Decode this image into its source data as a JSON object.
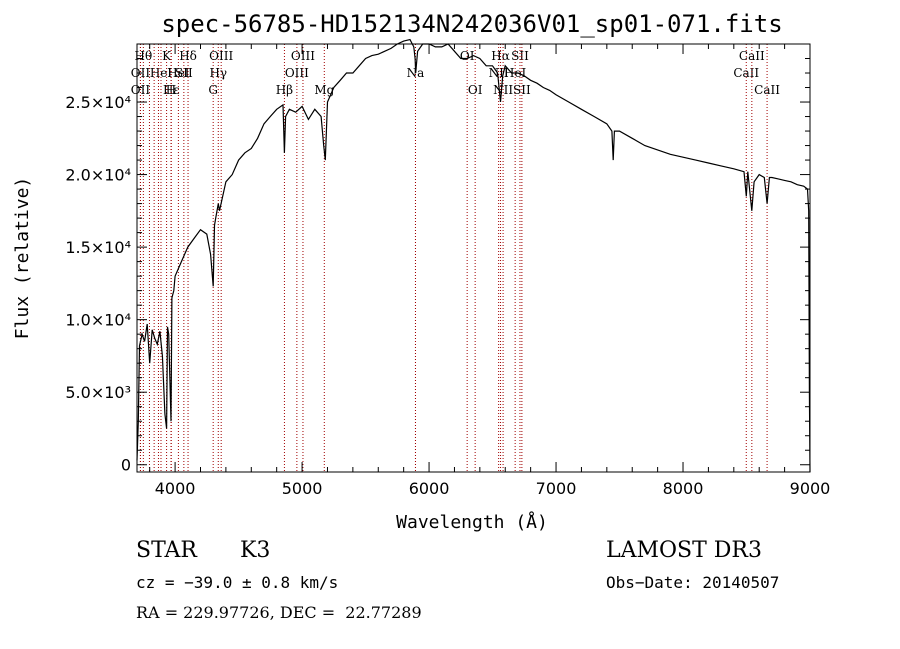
{
  "chart_data": {
    "type": "line",
    "title": "spec-56785-HD152134N242036V01_sp01-071.fits",
    "xlabel": "Wavelength (Å)",
    "ylabel": "Flux (relative)",
    "xlim": [
      3700,
      9000
    ],
    "ylim": [
      -500,
      29000
    ],
    "x_ticks": [
      4000,
      5000,
      6000,
      7000,
      8000,
      9000
    ],
    "y_ticks": [
      {
        "value": 0,
        "label": "0"
      },
      {
        "value": 5000,
        "label": "5.0×10³"
      },
      {
        "value": 10000,
        "label": "1.0×10⁴"
      },
      {
        "value": 15000,
        "label": "1.5×10⁴"
      },
      {
        "value": 20000,
        "label": "2.0×10⁴"
      },
      {
        "value": 25000,
        "label": "2.5×10⁴"
      }
    ],
    "series": [
      {
        "color": "#000000",
        "x": [
          3700,
          3710,
          3720,
          3740,
          3760,
          3780,
          3800,
          3820,
          3840,
          3860,
          3880,
          3900,
          3920,
          3933,
          3940,
          3950,
          3960,
          3968,
          3975,
          3990,
          4000,
          4050,
          4100,
          4150,
          4200,
          4250,
          4280,
          4300,
          4310,
          4320,
          4340,
          4350,
          4400,
          4450,
          4500,
          4550,
          4600,
          4650,
          4700,
          4750,
          4800,
          4850,
          4861,
          4870,
          4900,
          4950,
          5000,
          5050,
          5100,
          5150,
          5170,
          5183,
          5200,
          5250,
          5300,
          5350,
          5400,
          5450,
          5500,
          5550,
          5600,
          5650,
          5700,
          5750,
          5800,
          5850,
          5880,
          5890,
          5895,
          5910,
          5950,
          6000,
          6050,
          6100,
          6150,
          6200,
          6250,
          6300,
          6350,
          6400,
          6450,
          6500,
          6540,
          6563,
          6580,
          6600,
          6650,
          6700,
          6750,
          6800,
          6850,
          6900,
          6950,
          7000,
          7100,
          7200,
          7300,
          7400,
          7440,
          7450,
          7460,
          7500,
          7600,
          7700,
          7800,
          7900,
          8000,
          8100,
          8200,
          8300,
          8400,
          8480,
          8498,
          8510,
          8542,
          8560,
          8600,
          8640,
          8662,
          8680,
          8700,
          8750,
          8800,
          8850,
          8900,
          8950,
          8980,
          8990,
          8995,
          9000
        ],
        "y": [
          300,
          3000,
          8200,
          9000,
          8500,
          9700,
          7000,
          9300,
          8700,
          8300,
          9200,
          7500,
          3500,
          2500,
          9500,
          9000,
          5600,
          3000,
          11500,
          12000,
          13000,
          14000,
          15000,
          15600,
          16200,
          15900,
          14500,
          12300,
          16500,
          17000,
          18000,
          17500,
          19500,
          20000,
          21000,
          21500,
          21800,
          22500,
          23500,
          24000,
          24500,
          24800,
          21500,
          24000,
          24500,
          24300,
          24700,
          23800,
          24500,
          24000,
          22000,
          21000,
          25000,
          26000,
          26500,
          27000,
          27000,
          27500,
          28000,
          28200,
          28300,
          28500,
          28700,
          29000,
          29200,
          29300,
          28800,
          28000,
          27000,
          28500,
          29000,
          29000,
          28800,
          28800,
          29000,
          28500,
          28000,
          28000,
          28200,
          28000,
          27500,
          27500,
          27000,
          25000,
          26800,
          27500,
          27000,
          27000,
          26800,
          26500,
          26300,
          26000,
          25800,
          25500,
          25000,
          24500,
          24000,
          23500,
          23000,
          21000,
          23000,
          23000,
          22500,
          22000,
          21700,
          21400,
          21200,
          21000,
          20800,
          20600,
          20400,
          20200,
          18500,
          20200,
          17500,
          19500,
          20000,
          19800,
          18000,
          19800,
          19800,
          19700,
          19600,
          19500,
          19300,
          19200,
          19000,
          17500,
          5000,
          -500
        ]
      }
    ],
    "lines": [
      {
        "w": 3750,
        "label": "Hθ",
        "row": 0
      },
      {
        "w": 3727,
        "label": "OII",
        "row": 1
      },
      {
        "w": 3727,
        "label": "OII",
        "row": 2
      },
      {
        "w": 3798,
        "label": "",
        "row": -1
      },
      {
        "w": 3835,
        "label": "",
        "row": -1
      },
      {
        "w": 3889,
        "label": "HeI",
        "row": 1
      },
      {
        "w": 3869,
        "label": "",
        "row": -1
      },
      {
        "w": 3970,
        "label": "Hε",
        "row": 2
      },
      {
        "w": 3933,
        "label": "K",
        "row": 0
      },
      {
        "w": 3968,
        "label": "H",
        "row": 2
      },
      {
        "w": 4026,
        "label": "HeI",
        "row": 1
      },
      {
        "w": 4069,
        "label": "SII",
        "row": 1
      },
      {
        "w": 4102,
        "label": "Hδ",
        "row": 0
      },
      {
        "w": 4300,
        "label": "G",
        "row": 2
      },
      {
        "w": 4340,
        "label": "Hγ",
        "row": 1
      },
      {
        "w": 4363,
        "label": "OIII",
        "row": 0
      },
      {
        "w": 4861,
        "label": "Hβ",
        "row": 2
      },
      {
        "w": 4959,
        "label": "OIII",
        "row": 1
      },
      {
        "w": 5007,
        "label": "OIII",
        "row": 0
      },
      {
        "w": 5175,
        "label": "Mg",
        "row": 2
      },
      {
        "w": 5893,
        "label": "Na",
        "row": 1
      },
      {
        "w": 5893,
        "label": "",
        "row": -1
      },
      {
        "w": 6300,
        "label": "OI",
        "row": 0
      },
      {
        "w": 6363,
        "label": "OI",
        "row": 2
      },
      {
        "w": 6548,
        "label": "NII",
        "row": 1
      },
      {
        "w": 6563,
        "label": "Hα",
        "row": 0
      },
      {
        "w": 6583,
        "label": "NII",
        "row": 2
      },
      {
        "w": 6678,
        "label": "HeI",
        "row": 1
      },
      {
        "w": 6716,
        "label": "SII",
        "row": 0
      },
      {
        "w": 6731,
        "label": "SII",
        "row": 2
      },
      {
        "w": 8498,
        "label": "CaII",
        "row": 1
      },
      {
        "w": 8542,
        "label": "CaII",
        "row": 0
      },
      {
        "w": 8662,
        "label": "CaII",
        "row": 2
      }
    ]
  },
  "info": {
    "object_class": "STAR",
    "subclass": "K3",
    "survey": "LAMOST DR3",
    "cz": "cz = −39.0 ± 0.8 km/s",
    "obs_date": "Obs−Date: 20140507",
    "coords": "RA = 229.97726, DEC =  22.77289"
  }
}
